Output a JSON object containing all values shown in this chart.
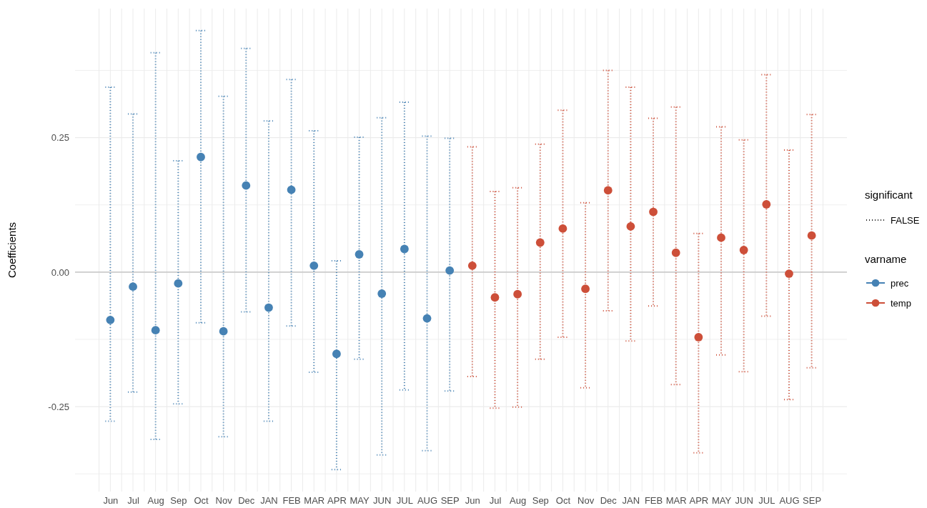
{
  "chart_data": {
    "type": "scatter",
    "ylabel": "Coefficients",
    "legend_title": "varname",
    "legend": "right",
    "grid": true,
    "marker": "circle",
    "line_style": "dotted",
    "categories": [
      "Jun",
      "Jul",
      "Aug",
      "Sep",
      "Oct",
      "Nov",
      "Dec",
      "JAN",
      "FEB",
      "MAR",
      "APR",
      "MAY",
      "JUN",
      "JUL",
      "AUG",
      "SEP",
      "Jun",
      "Jul",
      "Aug",
      "Sep",
      "Oct",
      "Nov",
      "Dec",
      "JAN",
      "FEB",
      "MAR",
      "APR",
      "MAY",
      "JUN",
      "JUL",
      "AUG",
      "SEP"
    ],
    "ylim": [
      -0.408,
      0.49
    ],
    "yticks": [
      {
        "value": -0.375,
        "label": null
      },
      {
        "value": -0.25,
        "label": "-0.25"
      },
      {
        "value": -0.125,
        "label": null
      },
      {
        "value": 0,
        "label": "0.00"
      },
      {
        "value": 0.125,
        "label": null
      },
      {
        "value": 0.25,
        "label": "0.25"
      },
      {
        "value": 0.375,
        "label": null
      }
    ],
    "ref_lines": [
      {
        "axis": "y",
        "value": 0,
        "color": "#bebebe"
      }
    ],
    "annotations": [
      "significant",
      "FALSE"
    ],
    "series": [
      {
        "name": "prec",
        "color": "#4682b4",
        "values": [
          -0.089,
          -0.027,
          -0.108,
          -0.021,
          0.214,
          -0.11,
          0.161,
          -0.066,
          0.153,
          0.012,
          -0.152,
          0.033,
          -0.04,
          0.043,
          -0.086,
          0.003,
          null,
          null,
          null,
          null,
          null,
          null,
          null,
          null,
          null,
          null,
          null,
          null,
          null,
          null,
          null,
          null
        ],
        "errors": [
          [
            -0.277,
            0.344
          ],
          [
            -0.223,
            0.294
          ],
          [
            -0.311,
            0.408
          ],
          [
            -0.245,
            0.207
          ],
          [
            -0.094,
            0.449
          ],
          [
            -0.306,
            0.327
          ],
          [
            -0.074,
            0.416
          ],
          [
            -0.277,
            0.281
          ],
          [
            -0.1,
            0.358
          ],
          [
            -0.186,
            0.263
          ],
          [
            -0.367,
            0.021
          ],
          [
            -0.162,
            0.251
          ],
          [
            -0.34,
            0.287
          ],
          [
            -0.219,
            0.316
          ],
          [
            -0.332,
            0.253
          ],
          [
            -0.221,
            0.249
          ],
          null,
          null,
          null,
          null,
          null,
          null,
          null,
          null,
          null,
          null,
          null,
          null,
          null,
          null,
          null,
          null
        ]
      },
      {
        "name": "temp",
        "color": "#cd4f39",
        "values": [
          null,
          null,
          null,
          null,
          null,
          null,
          null,
          null,
          null,
          null,
          null,
          null,
          null,
          null,
          null,
          null,
          0.012,
          -0.047,
          -0.041,
          0.055,
          0.081,
          -0.031,
          0.152,
          0.085,
          0.112,
          0.036,
          -0.121,
          0.064,
          0.041,
          0.126,
          -0.003,
          0.068
        ],
        "errors": [
          null,
          null,
          null,
          null,
          null,
          null,
          null,
          null,
          null,
          null,
          null,
          null,
          null,
          null,
          null,
          null,
          [
            -0.194,
            0.233
          ],
          [
            -0.253,
            0.15
          ],
          [
            -0.251,
            0.157
          ],
          [
            -0.162,
            0.238
          ],
          [
            -0.121,
            0.301
          ],
          [
            -0.215,
            0.129
          ],
          [
            -0.072,
            0.375
          ],
          [
            -0.128,
            0.344
          ],
          [
            -0.063,
            0.286
          ],
          [
            -0.209,
            0.307
          ],
          [
            -0.336,
            0.072
          ],
          [
            -0.154,
            0.27
          ],
          [
            -0.185,
            0.246
          ],
          [
            -0.082,
            0.367
          ],
          [
            -0.237,
            0.227
          ],
          [
            -0.178,
            0.293
          ]
        ]
      }
    ]
  }
}
